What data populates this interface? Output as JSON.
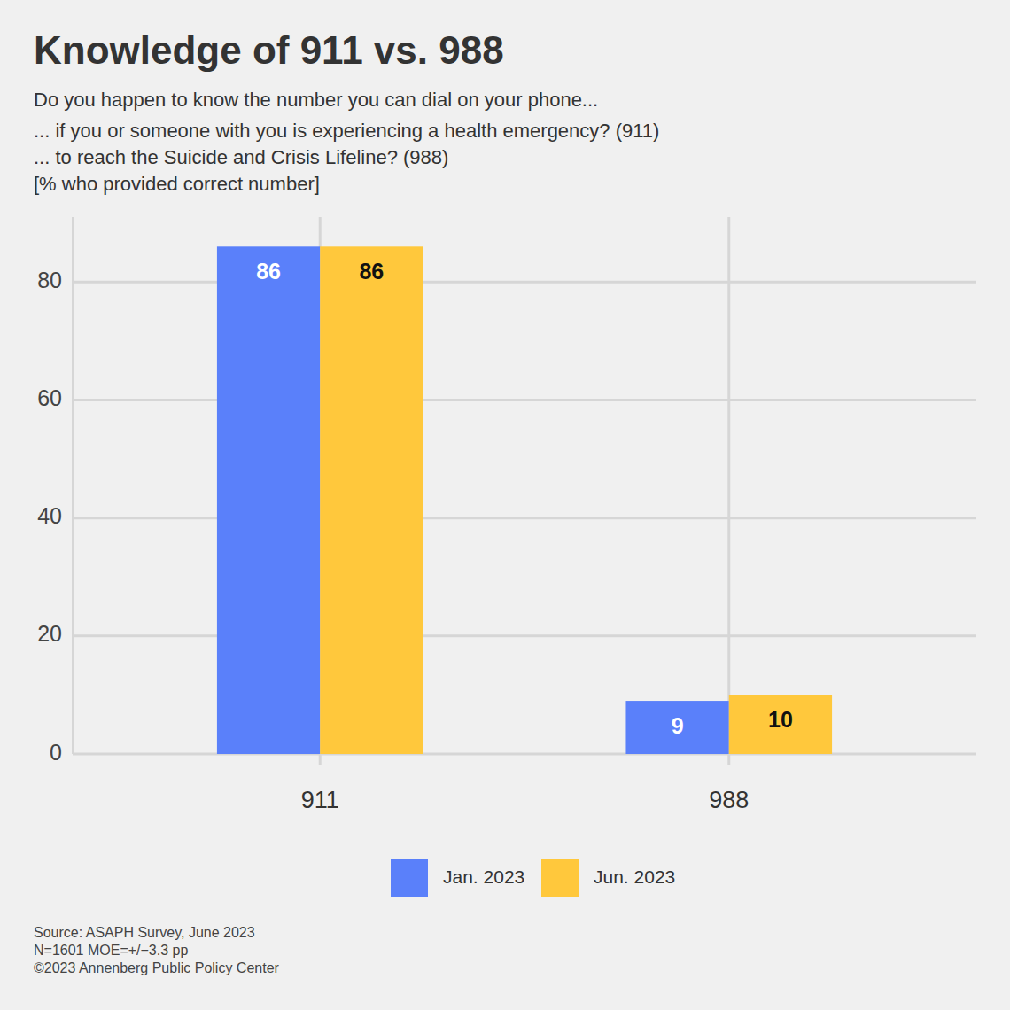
{
  "chart_data": {
    "type": "bar",
    "title": "Knowledge of 911 vs. 988",
    "subtitle": [
      "Do you happen to know the number you can dial on your phone...",
      "... if you or someone with you is experiencing a health emergency? (911)",
      "... to reach the Suicide and Crisis Lifeline? (988)",
      "[% who provided correct number]"
    ],
    "categories": [
      "911",
      "988"
    ],
    "series": [
      {
        "name": "Jan. 2023",
        "color": "#5a80fa",
        "values": [
          86,
          9
        ]
      },
      {
        "name": "Jun. 2023",
        "color": "#ffc83c",
        "values": [
          86,
          10
        ]
      }
    ],
    "ylim": [
      0,
      91
    ],
    "yticks": [
      0,
      20,
      40,
      60,
      80
    ],
    "grid": true,
    "data_labels": true,
    "legend": "bottom",
    "source": [
      "Source: ASAPH Survey, June 2023",
      "N=1601 MOE=+/−3.3 pp",
      "©2023 Annenberg Public Policy Center"
    ]
  }
}
